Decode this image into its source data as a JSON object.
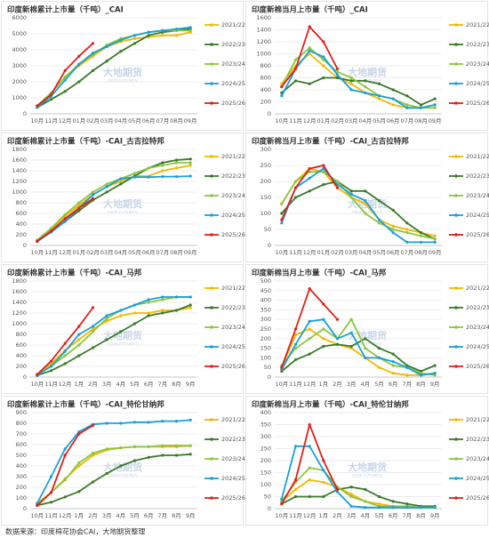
{
  "chart_data": [
    {
      "type": "line",
      "title": "印度新棉累计上市量（千吨）_CAI",
      "categories": [
        "10月",
        "11月",
        "12月",
        "01月",
        "02月",
        "03月",
        "04月",
        "05月",
        "06月",
        "07月",
        "08月",
        "09月"
      ],
      "ylim": [
        0,
        6000
      ],
      "yticks": [
        0,
        1000,
        2000,
        3000,
        4000,
        5000,
        6000
      ],
      "grid": true,
      "legend": "right",
      "series": [
        {
          "name": "2021/22",
          "color": "#f2b800",
          "values": [
            500,
            1300,
            2300,
            3000,
            3600,
            4200,
            4500,
            4700,
            4800,
            4900,
            4900,
            5100
          ]
        },
        {
          "name": "2022/23",
          "color": "#3a7a2a",
          "values": [
            400,
            900,
            1400,
            2000,
            2700,
            3300,
            3900,
            4400,
            4900,
            5100,
            5200,
            5300
          ]
        },
        {
          "name": "2023/24",
          "color": "#8cc63f",
          "values": [
            500,
            1300,
            2300,
            3100,
            3700,
            4300,
            4700,
            4900,
            5100,
            5200,
            5200,
            5200
          ]
        },
        {
          "name": "2024/25",
          "color": "#1aa0d8",
          "values": [
            400,
            1100,
            2100,
            3100,
            3800,
            4200,
            4600,
            4900,
            5100,
            5200,
            5300,
            5400
          ]
        },
        {
          "name": "2025/26",
          "color": "#e0201b",
          "values": [
            500,
            1200,
            2700,
            3600,
            4400,
            null,
            null,
            null,
            null,
            null,
            null,
            null
          ]
        }
      ]
    },
    {
      "type": "line",
      "title": "印度新棉当月上市量（千吨）_CAI",
      "categories": [
        "10月",
        "11月",
        "12月",
        "01月",
        "02月",
        "03月",
        "04月",
        "05月",
        "06月",
        "07月",
        "08月",
        "09月"
      ],
      "ylim": [
        0,
        1600
      ],
      "yticks": [
        0,
        200,
        400,
        600,
        800,
        1000,
        1200,
        1400,
        1600
      ],
      "grid": true,
      "legend": "right",
      "series": [
        {
          "name": "2021/22",
          "color": "#f2b800",
          "values": [
            500,
            800,
            1000,
            800,
            600,
            500,
            350,
            250,
            150,
            100,
            100,
            150
          ]
        },
        {
          "name": "2022/23",
          "color": "#3a7a2a",
          "values": [
            350,
            550,
            500,
            600,
            600,
            550,
            550,
            500,
            400,
            300,
            150,
            250
          ]
        },
        {
          "name": "2023/24",
          "color": "#8cc63f",
          "values": [
            450,
            900,
            1100,
            900,
            700,
            600,
            450,
            300,
            250,
            150,
            100,
            100
          ]
        },
        {
          "name": "2024/25",
          "color": "#1aa0d8",
          "values": [
            300,
            750,
            1050,
            950,
            650,
            400,
            350,
            300,
            250,
            100,
            100,
            150
          ]
        },
        {
          "name": "2025/26",
          "color": "#e0201b",
          "values": [
            450,
            750,
            1450,
            1200,
            750,
            null,
            null,
            null,
            null,
            null,
            null,
            null
          ]
        }
      ]
    },
    {
      "type": "line",
      "title": "印度新棉累计上市量（千吨）-CAI_古吉拉特邦",
      "categories": [
        "10月",
        "11月",
        "12月",
        "01月",
        "02月",
        "03月",
        "04月",
        "05月",
        "06月",
        "07月",
        "08月",
        "09月"
      ],
      "ylim": [
        0,
        1800
      ],
      "yticks": [
        0,
        200,
        400,
        600,
        800,
        1000,
        1200,
        1400,
        1600,
        1800
      ],
      "grid": true,
      "legend": "right",
      "series": [
        {
          "name": "2021/22",
          "color": "#f2b800",
          "values": [
            100,
            300,
            550,
            750,
            950,
            1100,
            1200,
            1300,
            1300,
            1400,
            1450,
            1500
          ]
        },
        {
          "name": "2022/23",
          "color": "#3a7a2a",
          "values": [
            80,
            250,
            450,
            650,
            850,
            1000,
            1150,
            1300,
            1450,
            1550,
            1600,
            1620
          ]
        },
        {
          "name": "2023/24",
          "color": "#8cc63f",
          "values": [
            100,
            320,
            580,
            800,
            1000,
            1150,
            1250,
            1350,
            1450,
            1500,
            1550,
            1550
          ]
        },
        {
          "name": "2024/25",
          "color": "#1aa0d8",
          "values": [
            70,
            250,
            450,
            700,
            950,
            1100,
            1250,
            1280,
            1280,
            1290,
            1290,
            1300
          ]
        },
        {
          "name": "2025/26",
          "color": "#e0201b",
          "values": [
            80,
            270,
            500,
            700,
            880,
            null,
            null,
            null,
            null,
            null,
            null,
            null
          ]
        }
      ]
    },
    {
      "type": "line",
      "title": "印度新棉当月上市量（千吨）-CAI_古吉拉特邦",
      "categories": [
        "10月",
        "11月",
        "12月",
        "01月",
        "02月",
        "03月",
        "04月",
        "05月",
        "06月",
        "07月",
        "08月",
        "09月"
      ],
      "ylim": [
        0,
        300
      ],
      "yticks": [
        0,
        50,
        100,
        150,
        200,
        250,
        300
      ],
      "grid": true,
      "legend": "right",
      "series": [
        {
          "name": "2021/22",
          "color": "#f2b800",
          "values": [
            130,
            200,
            240,
            230,
            180,
            150,
            130,
            80,
            60,
            50,
            40,
            30
          ]
        },
        {
          "name": "2022/23",
          "color": "#3a7a2a",
          "values": [
            100,
            150,
            170,
            190,
            200,
            170,
            170,
            140,
            110,
            70,
            40,
            20
          ]
        },
        {
          "name": "2023/24",
          "color": "#8cc63f",
          "values": [
            130,
            200,
            230,
            230,
            200,
            150,
            100,
            70,
            50,
            40,
            30,
            20
          ]
        },
        {
          "name": "2024/25",
          "color": "#1aa0d8",
          "values": [
            70,
            180,
            210,
            240,
            190,
            160,
            140,
            80,
            40,
            10,
            10,
            10
          ]
        },
        {
          "name": "2025/26",
          "color": "#e0201b",
          "values": [
            80,
            180,
            240,
            250,
            180,
            null,
            null,
            null,
            null,
            null,
            null,
            null
          ]
        }
      ]
    },
    {
      "type": "line",
      "title": "印度新棉累计上市量（千吨）-CAI_马邦",
      "categories": [
        "10月",
        "11月",
        "12月",
        "1月",
        "2月",
        "3月",
        "4月",
        "5月",
        "6月",
        "7月",
        "8月",
        "9月"
      ],
      "ylim": [
        0,
        1800
      ],
      "yticks": [
        0,
        200,
        400,
        600,
        800,
        1000,
        1200,
        1400,
        1600,
        1800
      ],
      "grid": true,
      "legend": "right",
      "series": [
        {
          "name": "2021/22",
          "color": "#f2b800",
          "values": [
            50,
            250,
            500,
            700,
            900,
            1050,
            1150,
            1200,
            1200,
            1250,
            1250,
            1300
          ]
        },
        {
          "name": "2022/23",
          "color": "#3a7a2a",
          "values": [
            30,
            120,
            250,
            400,
            550,
            700,
            850,
            1000,
            1150,
            1200,
            1250,
            1350
          ]
        },
        {
          "name": "2023/24",
          "color": "#8cc63f",
          "values": [
            50,
            200,
            400,
            600,
            850,
            1100,
            1250,
            1350,
            1400,
            1450,
            1500,
            1500
          ]
        },
        {
          "name": "2024/25",
          "color": "#1aa0d8",
          "values": [
            40,
            200,
            480,
            800,
            950,
            1150,
            1250,
            1350,
            1450,
            1500,
            1500,
            1500
          ]
        },
        {
          "name": "2025/26",
          "color": "#e0201b",
          "values": [
            50,
            300,
            630,
            950,
            1300,
            null,
            null,
            null,
            null,
            null,
            null,
            null
          ]
        }
      ]
    },
    {
      "type": "line",
      "title": "印度新棉当月上市量（千吨）-CAI_马邦",
      "categories": [
        "10月",
        "11月",
        "12月",
        "1月",
        "2月",
        "3月",
        "4月",
        "5月",
        "6月",
        "7月",
        "8月",
        "9月"
      ],
      "ylim": [
        0,
        500
      ],
      "yticks": [
        0,
        50,
        100,
        150,
        200,
        250,
        300,
        350,
        400,
        450,
        500
      ],
      "grid": true,
      "legend": "right",
      "series": [
        {
          "name": "2021/22",
          "color": "#f2b800",
          "values": [
            50,
            220,
            250,
            200,
            170,
            150,
            100,
            50,
            20,
            10,
            10,
            20
          ]
        },
        {
          "name": "2022/23",
          "color": "#3a7a2a",
          "values": [
            30,
            90,
            120,
            160,
            170,
            160,
            200,
            150,
            120,
            60,
            30,
            60
          ]
        },
        {
          "name": "2023/24",
          "color": "#8cc63f",
          "values": [
            60,
            150,
            200,
            250,
            200,
            300,
            150,
            100,
            60,
            50,
            20,
            10
          ]
        },
        {
          "name": "2024/25",
          "color": "#1aa0d8",
          "values": [
            40,
            170,
            290,
            300,
            200,
            230,
            100,
            100,
            80,
            50,
            10,
            20
          ]
        },
        {
          "name": "2025/26",
          "color": "#e0201b",
          "values": [
            50,
            250,
            460,
            380,
            300,
            null,
            null,
            null,
            null,
            null,
            null,
            null
          ]
        }
      ]
    },
    {
      "type": "line",
      "title": "印度新棉累计上市量（千吨）-CAI_特伦甘纳邦",
      "categories": [
        "10月",
        "11月",
        "12月",
        "1月",
        "2月",
        "3月",
        "4月",
        "5月",
        "6月",
        "7月",
        "8月",
        "9月"
      ],
      "ylim": [
        0,
        900
      ],
      "yticks": [
        0,
        100,
        200,
        300,
        400,
        500,
        600,
        700,
        800,
        900
      ],
      "grid": true,
      "legend": "right",
      "series": [
        {
          "name": "2021/22",
          "color": "#f2b800",
          "values": [
            50,
            150,
            280,
            400,
            500,
            550,
            570,
            580,
            580,
            580,
            580,
            590
          ]
        },
        {
          "name": "2022/23",
          "color": "#3a7a2a",
          "values": [
            30,
            60,
            110,
            160,
            250,
            330,
            400,
            450,
            480,
            500,
            500,
            510
          ]
        },
        {
          "name": "2023/24",
          "color": "#8cc63f",
          "values": [
            40,
            150,
            270,
            430,
            520,
            560,
            570,
            580,
            580,
            590,
            590,
            590
          ]
        },
        {
          "name": "2024/25",
          "color": "#1aa0d8",
          "values": [
            50,
            300,
            560,
            720,
            790,
            800,
            800,
            810,
            810,
            820,
            820,
            830
          ]
        },
        {
          "name": "2025/26",
          "color": "#e0201b",
          "values": [
            30,
            150,
            500,
            700,
            780,
            null,
            null,
            null,
            null,
            null,
            null,
            null
          ]
        }
      ]
    },
    {
      "type": "line",
      "title": "印度新棉当月上市量（千吨）-CAI_特伦甘纳邦",
      "categories": [
        "10月",
        "11月",
        "12月",
        "1月",
        "2月",
        "3月",
        "4月",
        "5月",
        "6月",
        "7月",
        "8月",
        "9月"
      ],
      "ylim": [
        0,
        400
      ],
      "yticks": [
        0,
        50,
        100,
        150,
        200,
        250,
        300,
        350,
        400
      ],
      "grid": true,
      "legend": "right",
      "series": [
        {
          "name": "2021/22",
          "color": "#f2b800",
          "values": [
            30,
            80,
            120,
            110,
            90,
            60,
            30,
            20,
            10,
            5,
            5,
            5
          ]
        },
        {
          "name": "2022/23",
          "color": "#3a7a2a",
          "values": [
            20,
            50,
            50,
            50,
            80,
            90,
            80,
            50,
            30,
            20,
            10,
            10
          ]
        },
        {
          "name": "2023/24",
          "color": "#8cc63f",
          "values": [
            30,
            110,
            170,
            160,
            90,
            50,
            30,
            10,
            10,
            10,
            5,
            5
          ]
        },
        {
          "name": "2024/25",
          "color": "#1aa0d8",
          "values": [
            40,
            260,
            260,
            160,
            70,
            10,
            5,
            5,
            5,
            5,
            5,
            5
          ]
        },
        {
          "name": "2025/26",
          "color": "#e0201b",
          "values": [
            20,
            120,
            350,
            200,
            80,
            null,
            null,
            null,
            null,
            null,
            null,
            null
          ]
        }
      ]
    }
  ],
  "watermark": {
    "name": "大地期货",
    "sub": "DADI FUTURES"
  },
  "source": "数据来源：印度棉花协会CAI，大地期货整理"
}
